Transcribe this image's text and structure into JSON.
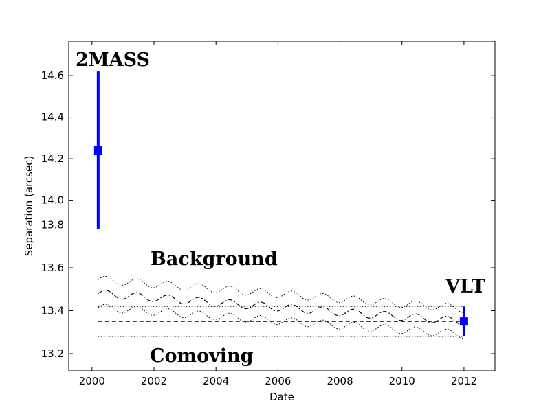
{
  "chart_data": {
    "type": "scatter",
    "xlabel": "Date",
    "ylabel": "Separation (arcsec)",
    "xlim": [
      1999.25,
      2013.0
    ],
    "ylim": [
      13.12,
      13.76
    ],
    "x_ticks": [
      2000,
      2002,
      2004,
      2006,
      2008,
      2010,
      2012
    ],
    "y_ticks": [
      13.2,
      13.4,
      13.6,
      13.8,
      14.0,
      14.2,
      14.4,
      14.6
    ],
    "grid": false,
    "y_axis_break": {
      "below": 13.88,
      "above": 14.55,
      "upper_range": [
        13.84,
        14.65
      ]
    },
    "points": [
      {
        "label": "2MASS",
        "x": 2000.2,
        "y": 14.24,
        "yerr": 0.38,
        "color": "#0000ff"
      },
      {
        "label": "VLT",
        "x": 2012.0,
        "y": 13.35,
        "yerr": 0.07,
        "color": "#0000ff"
      }
    ],
    "comoving": {
      "label": "Comoving",
      "x_range": [
        2000.2,
        2012.0
      ],
      "y": 13.35,
      "upper": 13.42,
      "lower": 13.28
    },
    "background": {
      "label": "Background",
      "x_range": [
        2000.2,
        2012.0
      ],
      "y_start": 13.48,
      "y_end": 13.35,
      "amplitude": 0.018,
      "period_years": 1.0,
      "band_halfwidth_start": 0.065,
      "band_halfwidth_end": 0.06
    }
  }
}
